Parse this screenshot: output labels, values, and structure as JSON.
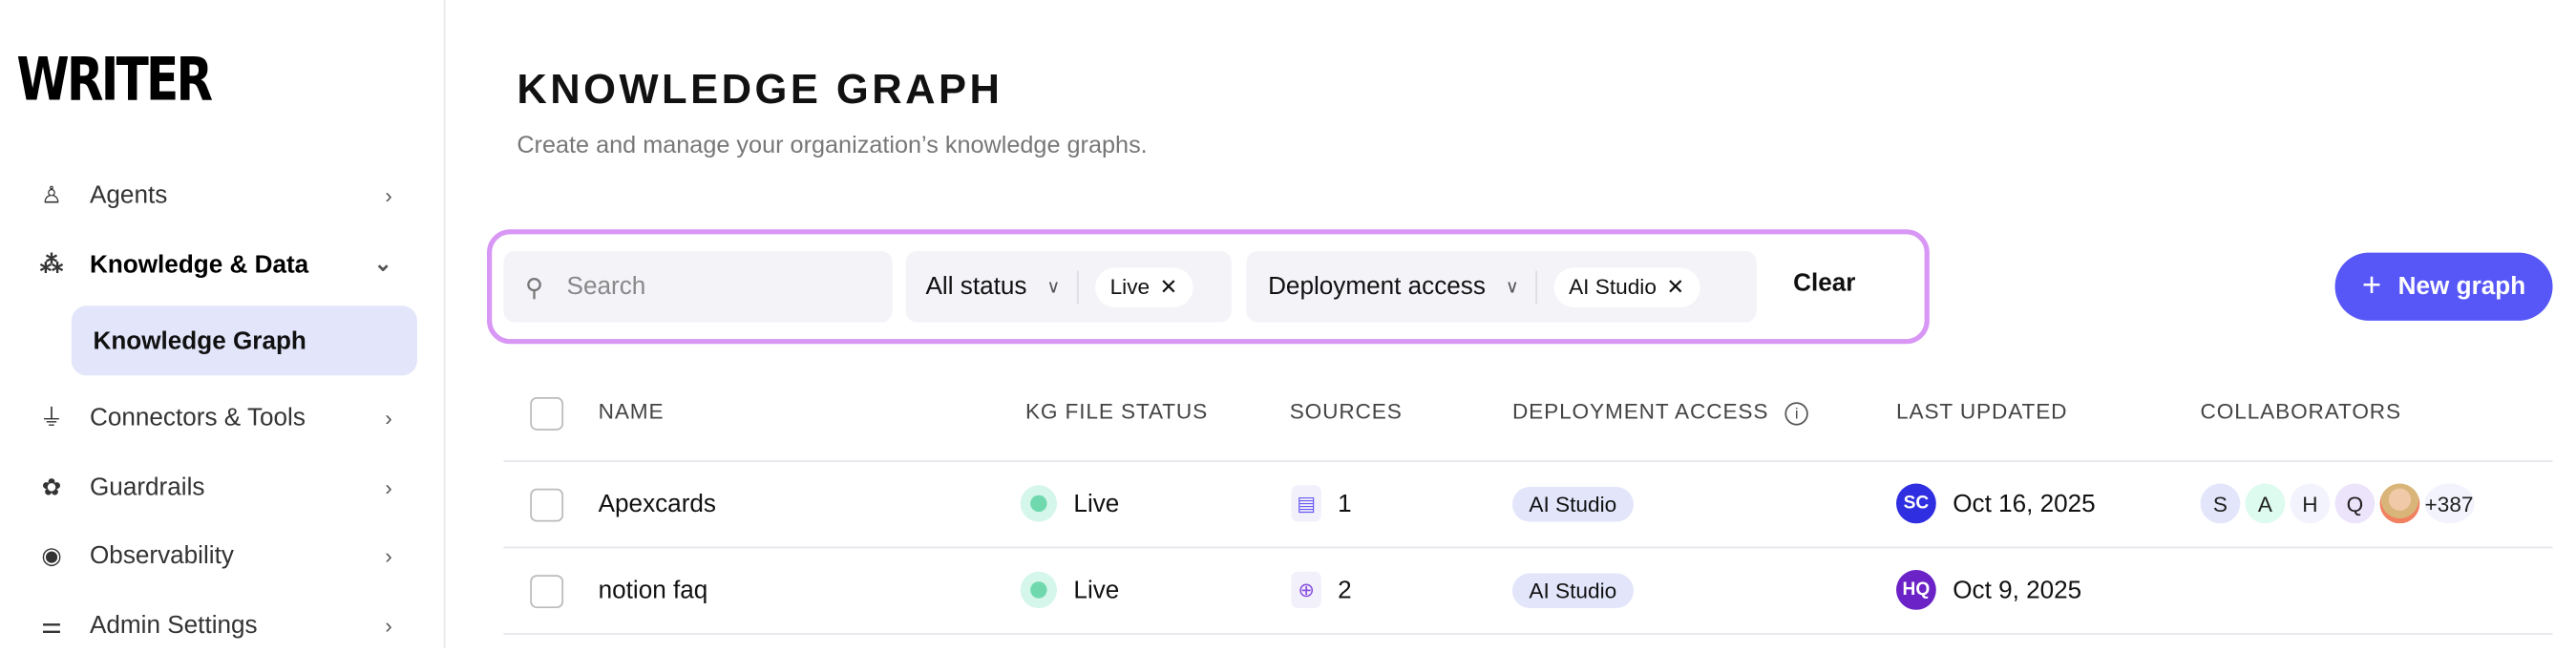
{
  "sidebar": {
    "logo": "WRITER",
    "items": [
      {
        "label": "Agents",
        "icon": "agent-icon"
      },
      {
        "label": "Knowledge & Data",
        "icon": "knowledge-icon",
        "expanded": true
      },
      {
        "label": "Connectors & Tools",
        "icon": "plug-icon"
      },
      {
        "label": "Guardrails",
        "icon": "brain-icon"
      },
      {
        "label": "Observability",
        "icon": "eye-icon"
      },
      {
        "label": "Admin Settings",
        "icon": "sliders-icon"
      }
    ],
    "sub_item": "Knowledge Graph"
  },
  "header": {
    "title": "KNOWLEDGE GRAPH",
    "subtitle": "Create and manage your organization’s knowledge graphs."
  },
  "filters": {
    "search_placeholder": "Search",
    "status_label": "All status",
    "status_chip": "Live",
    "access_label": "Deployment access",
    "access_chip": "AI Studio",
    "clear": "Clear"
  },
  "new_button": "New graph",
  "accent": "#5757f7",
  "table": {
    "columns": [
      "NAME",
      "KG FILE STATUS",
      "SOURCES",
      "DEPLOYMENT ACCESS",
      "LAST UPDATED",
      "COLLABORATORS"
    ],
    "rows": [
      {
        "name": "Apexcards",
        "status": "Live",
        "source_icon": "file-icon",
        "sources": "1",
        "access": "AI Studio",
        "updater": "SC",
        "updater_color": "#2f2ee0",
        "updated": "Oct 16, 2025",
        "collaborators": [
          {
            "i": "S",
            "c": "#e3e6fb"
          },
          {
            "i": "A",
            "c": "#ddfbef"
          },
          {
            "i": "H",
            "c": "#f3f3fd"
          },
          {
            "i": "Q",
            "c": "#ebe4fb"
          },
          {
            "i": "",
            "c": "#d9b79a"
          }
        ],
        "more": "+387"
      },
      {
        "name": "notion faq",
        "status": "Live",
        "source_icon": "globe-icon",
        "sources": "2",
        "access": "AI Studio",
        "updater": "HQ",
        "updater_color": "#6b22c6",
        "updated": "Oct 9, 2025",
        "collaborators": [],
        "more": ""
      }
    ]
  }
}
